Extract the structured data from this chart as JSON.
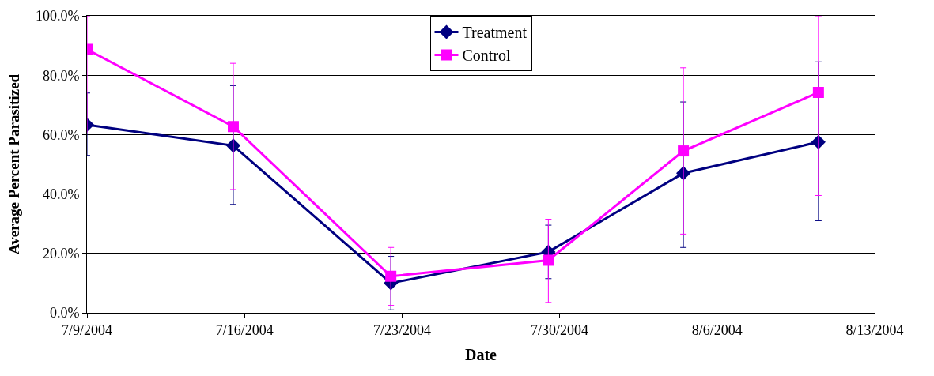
{
  "chart_data": {
    "type": "line",
    "xlabel": "Date",
    "ylabel": "Average Percent Parasitized",
    "x": [
      "2004-07-09",
      "2004-07-15T12:00",
      "2004-07-22T12:00",
      "2004-07-29T12:00",
      "2004-08-04T12:00",
      "2004-08-10T12:00"
    ],
    "series": [
      {
        "name": "Treatment",
        "color": "#000080",
        "marker": "diamond",
        "values": [
          63.3,
          56.3,
          10.0,
          20.5,
          47.0,
          57.5
        ],
        "errors": [
          [
            53,
            74
          ],
          [
            36.5,
            76.5
          ],
          [
            1,
            19
          ],
          [
            11.5,
            29.5
          ],
          [
            22,
            71
          ],
          [
            31,
            84.5
          ]
        ]
      },
      {
        "name": "Control",
        "color": "#ff00ff",
        "marker": "square",
        "values": [
          88.7,
          62.7,
          12.3,
          17.7,
          54.5,
          74.2
        ],
        "errors": [
          [
            60.5,
            100
          ],
          [
            41.5,
            84
          ],
          [
            2.5,
            22
          ],
          [
            3.5,
            31.5
          ],
          [
            26.5,
            82.5
          ],
          [
            39.5,
            100
          ]
        ]
      }
    ],
    "xlim": [
      "2004-07-09",
      "2004-08-13"
    ],
    "xticks": [
      {
        "value": "2004-07-09",
        "label": "7/9/2004"
      },
      {
        "value": "2004-07-16",
        "label": "7/16/2004"
      },
      {
        "value": "2004-07-23",
        "label": "7/23/2004"
      },
      {
        "value": "2004-07-30",
        "label": "7/30/2004"
      },
      {
        "value": "2004-08-06",
        "label": "8/6/2004"
      },
      {
        "value": "2004-08-13",
        "label": "8/13/2004"
      }
    ],
    "ylim": [
      0,
      100
    ],
    "yticks": [
      {
        "value": 0,
        "label": "0.0%"
      },
      {
        "value": 20,
        "label": "20.0%"
      },
      {
        "value": 40,
        "label": "40.0%"
      },
      {
        "value": 60,
        "label": "60.0%"
      },
      {
        "value": 80,
        "label": "80.0%"
      },
      {
        "value": 100,
        "label": "100.0%"
      }
    ],
    "grid": "y",
    "legend": "top",
    "line_style": "solid"
  }
}
